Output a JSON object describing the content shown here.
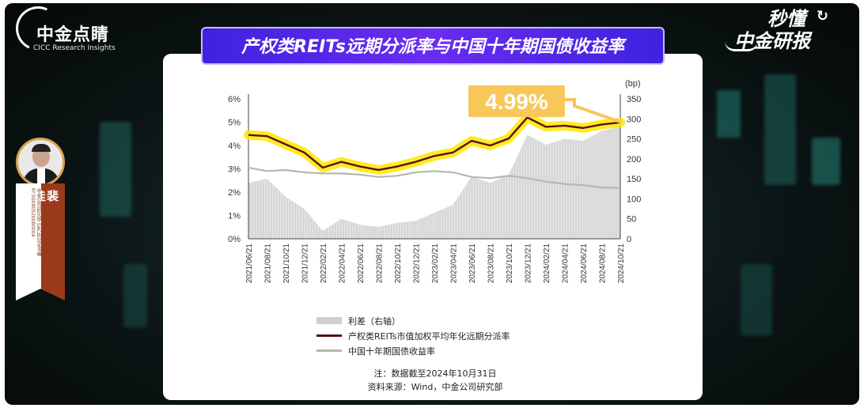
{
  "header": {
    "logo_cn": "中金点睛",
    "logo_en": "CICC Research Insights",
    "brand_line1": "秒懂",
    "brand_line2": "中金研报",
    "title": "产权类REITs远期分派率与中国十年期国债收益率"
  },
  "presenter": {
    "name": "裴佳敏",
    "desc": "中金公司研究部 SAC执业证书编号:S0080520080004"
  },
  "legend": {
    "items": [
      {
        "label": "利差（右轴）",
        "swatch": "area"
      },
      {
        "label": "产权类REITs市值加权平均年化远期分派率",
        "swatch": "line1"
      },
      {
        "label": "中国十年期国债收益率",
        "swatch": "line2"
      }
    ]
  },
  "notes": {
    "note": "注：数据截至2024年10月31日",
    "source": "资料来源：Wind，中金公司研究部"
  },
  "colors": {
    "reits_line": "#5b1212",
    "highlight": "#ffe600",
    "bond_line": "#b7b7aa",
    "spread_area": "#d6d6d6",
    "callout": "#f7c75a",
    "title_banner": "#4a25e6"
  },
  "chart_data": {
    "type": "line",
    "x_tick_labels": [
      "2021/06/21",
      "2021/08/21",
      "2021/10/21",
      "2021/12/21",
      "2022/02/21",
      "2022/04/21",
      "2022/06/21",
      "2022/08/21",
      "2022/10/21",
      "2022/12/21",
      "2023/02/21",
      "2023/04/21",
      "2023/06/21",
      "2023/08/21",
      "2023/10/21",
      "2023/12/21",
      "2024/02/21",
      "2024/04/21",
      "2024/06/21",
      "2024/08/21",
      "2024/10/21"
    ],
    "y_left_ticks": [
      "6%",
      "5%",
      "4%",
      "3%",
      "2%",
      "1%",
      "0%"
    ],
    "y_left_range": [
      0,
      6
    ],
    "y_right_ticks": [
      "350",
      "300",
      "250",
      "200",
      "150",
      "100",
      "50",
      "0"
    ],
    "y_right_range": [
      0,
      350
    ],
    "y_right_unit": "(bp)",
    "callout": "4.99%",
    "series": [
      {
        "name": "产权类REITs市值加权平均年化远期分派率",
        "axis": "left",
        "type": "line",
        "values": [
          4.45,
          4.4,
          4.05,
          3.7,
          3.05,
          3.3,
          3.1,
          2.95,
          3.1,
          3.3,
          3.55,
          3.7,
          4.2,
          4.0,
          4.3,
          5.2,
          4.8,
          4.85,
          4.75,
          4.9,
          4.99
        ]
      },
      {
        "name": "中国十年期国债收益率",
        "axis": "left",
        "type": "line",
        "values": [
          3.05,
          2.9,
          2.95,
          2.85,
          2.8,
          2.8,
          2.75,
          2.65,
          2.7,
          2.85,
          2.9,
          2.85,
          2.65,
          2.6,
          2.7,
          2.6,
          2.45,
          2.35,
          2.3,
          2.2,
          2.18
        ]
      },
      {
        "name": "利差（右轴）",
        "axis": "right",
        "type": "area",
        "values": [
          140,
          150,
          105,
          75,
          20,
          50,
          35,
          30,
          40,
          45,
          65,
          85,
          155,
          140,
          160,
          260,
          235,
          250,
          245,
          270,
          281
        ]
      }
    ]
  }
}
